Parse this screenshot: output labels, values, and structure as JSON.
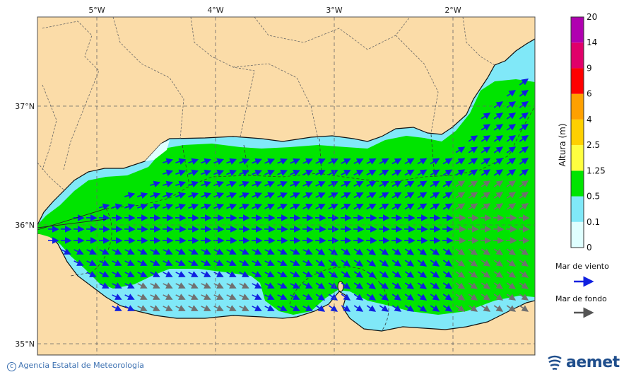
{
  "map": {
    "lon_ticks": [
      "5°W",
      "4°W",
      "3°W",
      "2°W"
    ],
    "lat_ticks": [
      "37°N",
      "36°N",
      "35°N"
    ],
    "colors": {
      "land": "#fbdca8",
      "sea_low": "#dfffff",
      "sea_01_05": "#80e8f8",
      "sea_05_125": "#00e400",
      "wind_arrow": "#1020e0",
      "swell_arrow": "#707070"
    }
  },
  "colorbar": {
    "title": "Altura (m)",
    "levels": [
      "0",
      "0.1",
      "0.5",
      "1.25",
      "2.5",
      "4",
      "6",
      "9",
      "14",
      "20"
    ],
    "colors": [
      "#dfffff",
      "#80e8f8",
      "#00e400",
      "#ffff40",
      "#ffd000",
      "#ffa000",
      "#ff0000",
      "#e0006a",
      "#b000b0"
    ]
  },
  "legend": {
    "wind_sea": "Mar de viento",
    "swell": "Mar de fondo"
  },
  "footer": {
    "copyright": "Agencia Estatal de Meteorología",
    "logo": "aemet"
  }
}
